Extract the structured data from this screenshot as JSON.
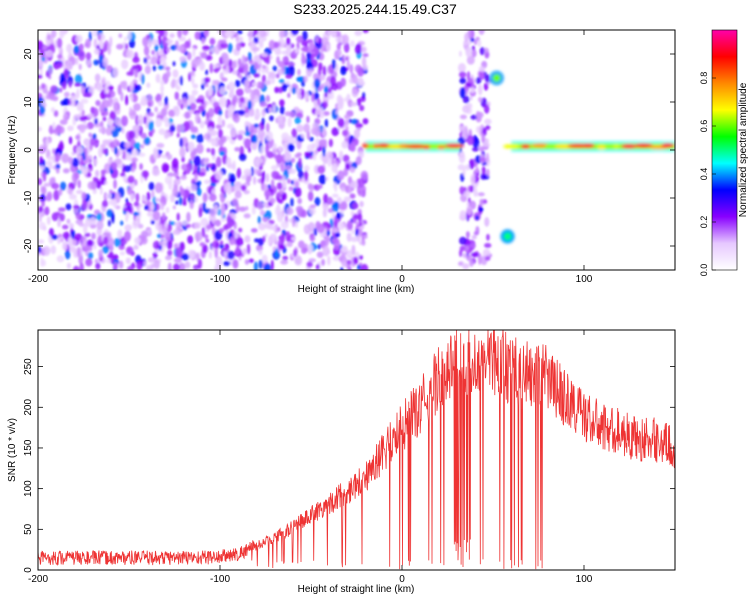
{
  "title": "S233.2025.244.15.49.C37",
  "chart_data": [
    {
      "type": "heatmap",
      "xlabel": "Height of straight line (km)",
      "ylabel": "Frequency (Hz)",
      "xlim": [
        -200,
        150
      ],
      "ylim": [
        -25,
        25
      ],
      "xticks": [
        -200,
        -100,
        0,
        100
      ],
      "xtick_labels": [
        "-200",
        "-100",
        "0",
        "100"
      ],
      "yticks": [
        -20,
        -10,
        0,
        10,
        20
      ],
      "ytick_labels": [
        "-20",
        "-10",
        "0",
        "10",
        "20"
      ],
      "colorbar": {
        "label": "Normalized spectral amplitude",
        "range": [
          0,
          1
        ],
        "ticks": [
          0.0,
          0.2,
          0.4,
          0.6,
          0.8
        ],
        "tick_labels": [
          "0.0",
          "0.2",
          "0.4",
          "0.6",
          "0.8"
        ],
        "colormap": [
          "#ffffff",
          "#e6c8ff",
          "#8800ff",
          "#0000ff",
          "#00ffff",
          "#00ff00",
          "#ffff00",
          "#ff8800",
          "#ff0000",
          "#ff00aa"
        ]
      },
      "regions": [
        {
          "name": "noise-background",
          "x": [
            -200,
            -20
          ],
          "y": [
            -25,
            25
          ],
          "level": 0.3
        },
        {
          "name": "noise-column",
          "x": [
            32,
            48
          ],
          "y": [
            -25,
            25
          ],
          "level": 0.25
        },
        {
          "name": "signal-band-1",
          "x": [
            -20,
            32
          ],
          "y": [
            0,
            1.5
          ],
          "level": 0.85
        },
        {
          "name": "signal-band-2",
          "x": [
            60,
            150
          ],
          "y": [
            0,
            1.5
          ],
          "level": 0.9
        },
        {
          "name": "spot-upper",
          "x": [
            52
          ],
          "y": [
            15
          ],
          "level": 0.6
        },
        {
          "name": "spot-lower",
          "x": [
            58
          ],
          "y": [
            -18
          ],
          "level": 0.5
        }
      ]
    },
    {
      "type": "line",
      "xlabel": "Height of straight line (km)",
      "ylabel": "SNR (10 * v/v)",
      "xlim": [
        -200,
        150
      ],
      "ylim": [
        0,
        295
      ],
      "xticks": [
        -200,
        -100,
        0,
        100
      ],
      "xtick_labels": [
        "-200",
        "-100",
        "0",
        "100"
      ],
      "yticks": [
        0,
        50,
        100,
        150,
        200,
        250
      ],
      "ytick_labels": [
        "0",
        "50",
        "100",
        "150",
        "200",
        "250"
      ],
      "series": [
        {
          "name": "SNR",
          "color": "#ee3333",
          "x": [
            -200,
            -175,
            -150,
            -125,
            -100,
            -90,
            -80,
            -70,
            -60,
            -50,
            -40,
            -30,
            -20,
            -10,
            0,
            10,
            20,
            25,
            30,
            35,
            40,
            45,
            50,
            55,
            60,
            70,
            80,
            90,
            100,
            110,
            120,
            130,
            140,
            150
          ],
          "values": [
            15,
            15,
            15,
            15,
            16,
            20,
            30,
            40,
            52,
            68,
            82,
            97,
            115,
            145,
            175,
            200,
            235,
            250,
            260,
            260,
            255,
            255,
            260,
            255,
            245,
            240,
            235,
            210,
            190,
            175,
            170,
            160,
            160,
            150
          ]
        }
      ]
    }
  ]
}
